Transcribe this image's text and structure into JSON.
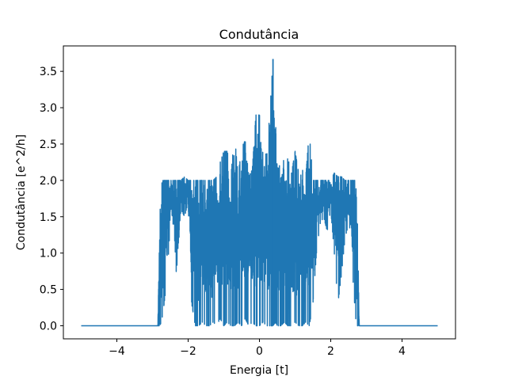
{
  "chart_data": {
    "type": "line",
    "title": "Condutância",
    "xlabel": "Energia [t]",
    "ylabel": "Condutância [e^2/h]",
    "xlim": [
      -5.5,
      5.5
    ],
    "ylim": [
      -0.18,
      3.85
    ],
    "xticks": [
      -4,
      -2,
      0,
      2,
      4
    ],
    "xtick_labels": [
      "−4",
      "−2",
      "0",
      "2",
      "4"
    ],
    "yticks": [
      0.0,
      0.5,
      1.0,
      1.5,
      2.0,
      2.5,
      3.0,
      3.5
    ],
    "ytick_labels": [
      "0.0",
      "0.5",
      "1.0",
      "1.5",
      "2.0",
      "2.5",
      "3.0",
      "3.5"
    ],
    "grid": false,
    "series": [
      {
        "color": "#1f77b4",
        "description_points": {
          "x": [
            -5.0,
            -2.85,
            -2.8,
            -2.75,
            -2.7,
            -2.6,
            -2.5,
            -2.4,
            -2.3,
            -2.2,
            -2.1,
            -2.0,
            -1.9,
            -1.8,
            -1.7,
            -1.6,
            -1.5,
            -1.4,
            -1.3,
            -1.2,
            -1.1,
            -1.0,
            -0.9,
            -0.8,
            -0.7,
            -0.6,
            -0.5,
            -0.4,
            -0.3,
            -0.2,
            -0.1,
            0.0,
            0.1,
            0.2,
            0.3,
            0.38,
            0.45,
            0.5,
            0.6,
            0.7,
            0.8,
            0.9,
            1.0,
            1.1,
            1.2,
            1.3,
            1.4,
            1.5,
            1.6,
            1.7,
            1.8,
            1.9,
            2.0,
            2.1,
            2.2,
            2.3,
            2.4,
            2.5,
            2.6,
            2.7,
            2.75,
            2.8,
            5.0
          ],
          "y_max": [
            0.0,
            0.0,
            1.45,
            1.95,
            2.0,
            2.0,
            2.0,
            2.0,
            2.0,
            2.0,
            2.05,
            2.0,
            2.0,
            2.0,
            2.0,
            2.0,
            2.0,
            2.0,
            2.0,
            2.05,
            2.25,
            2.4,
            2.4,
            2.05,
            2.65,
            2.05,
            2.45,
            2.55,
            2.05,
            2.15,
            2.9,
            2.9,
            2.6,
            2.3,
            3.0,
            3.67,
            2.75,
            2.6,
            2.35,
            2.25,
            2.3,
            2.1,
            2.4,
            2.1,
            2.15,
            2.05,
            2.7,
            2.0,
            2.0,
            2.0,
            2.0,
            2.0,
            2.0,
            2.1,
            2.05,
            2.05,
            2.0,
            2.0,
            2.0,
            2.0,
            1.4,
            0.0,
            0.0
          ],
          "y_min": [
            0.0,
            0.0,
            0.0,
            0.05,
            0.2,
            0.6,
            1.4,
            1.4,
            0.4,
            1.6,
            1.5,
            1.7,
            0.3,
            0.0,
            0.0,
            0.05,
            0.0,
            0.0,
            0.05,
            0.0,
            0.1,
            0.0,
            0.05,
            0.0,
            0.0,
            0.05,
            0.0,
            0.1,
            0.0,
            0.05,
            0.0,
            0.0,
            0.05,
            0.0,
            0.0,
            0.0,
            0.05,
            0.0,
            0.0,
            0.05,
            0.0,
            0.0,
            0.05,
            0.0,
            0.0,
            0.05,
            0.0,
            0.3,
            1.0,
            1.4,
            1.5,
            1.3,
            1.6,
            1.0,
            0.3,
            0.7,
            1.2,
            1.4,
            0.8,
            0.1,
            0.0,
            0.0,
            0.0
          ]
        }
      }
    ]
  }
}
